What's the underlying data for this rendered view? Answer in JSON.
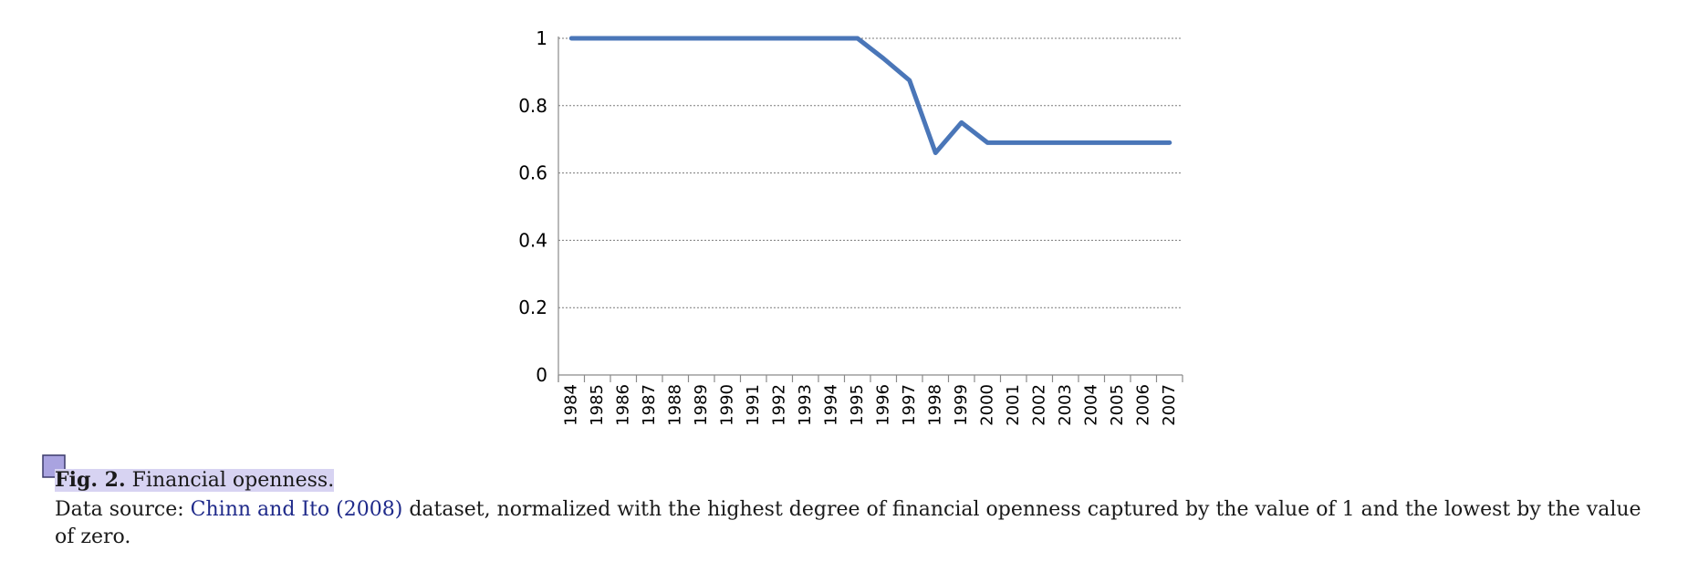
{
  "chart_data": {
    "type": "line",
    "x": [
      "1984",
      "1985",
      "1986",
      "1987",
      "1988",
      "1989",
      "1990",
      "1991",
      "1992",
      "1993",
      "1994",
      "1995",
      "1996",
      "1997",
      "1998",
      "1999",
      "2000",
      "2001",
      "2002",
      "2003",
      "2004",
      "2005",
      "2006",
      "2007"
    ],
    "series": [
      {
        "values": [
          1,
          1,
          1,
          1,
          1,
          1,
          1,
          1,
          1,
          1,
          1,
          1,
          0.94,
          0.875,
          0.66,
          0.75,
          0.69,
          0.69,
          0.69,
          0.69,
          0.69,
          0.69,
          0.69,
          0.69
        ],
        "color": "#4a76b8"
      }
    ],
    "yticks": [
      "0",
      "0.2",
      "0.4",
      "0.6",
      "0.8",
      "1"
    ],
    "ylim": [
      0,
      1
    ],
    "grid": "horizontal dotted",
    "title": "",
    "xlabel": "",
    "ylabel": ""
  },
  "caption": {
    "fig_label": "Fig. 2.",
    "title": " Financial openness.",
    "body_prefix": "Data source: ",
    "citation": "Chinn and Ito (2008)",
    "body_suffix": " dataset, normalized with the highest degree of financial openness captured by the value of 1 and the lowest by the value of zero."
  },
  "icons": {
    "note": "note-icon"
  }
}
